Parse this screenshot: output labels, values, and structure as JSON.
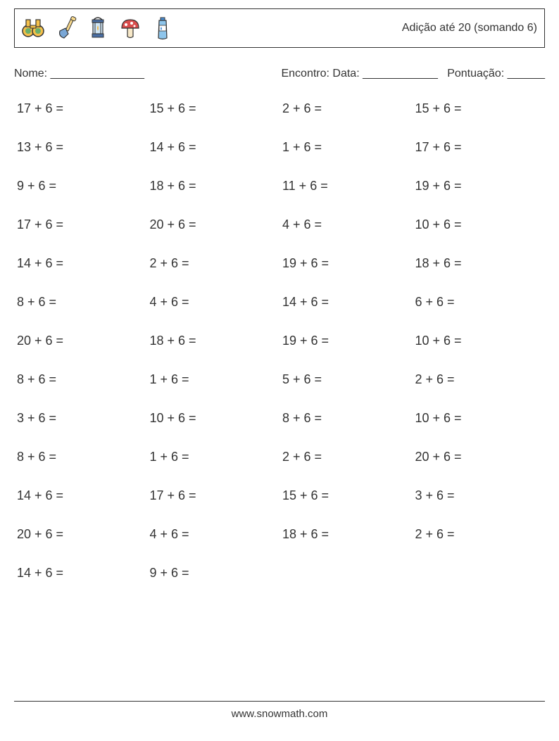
{
  "header": {
    "title": "Adição até 20 (somando 6)",
    "icons": [
      "binoculars-icon",
      "shovel-icon",
      "lantern-icon",
      "mushroom-icon",
      "water-bottle-icon"
    ]
  },
  "info": {
    "name_label": "Nome: _______________",
    "right_label": "Encontro: Data: ____________   Pontuação: ______"
  },
  "problems": {
    "columns": 4,
    "rows": [
      [
        "17 + 6 =",
        "15 + 6 =",
        "2 + 6 =",
        "15 + 6 ="
      ],
      [
        "13 + 6 =",
        "14 + 6 =",
        "1 + 6 =",
        "17 + 6 ="
      ],
      [
        "9 + 6 =",
        "18 + 6 =",
        "11 + 6 =",
        "19 + 6 ="
      ],
      [
        "17 + 6 =",
        "20 + 6 =",
        "4 + 6 =",
        "10 + 6 ="
      ],
      [
        "14 + 6 =",
        "2 + 6 =",
        "19 + 6 =",
        "18 + 6 ="
      ],
      [
        "8 + 6 =",
        "4 + 6 =",
        "14 + 6 =",
        "6 + 6 ="
      ],
      [
        "20 + 6 =",
        "18 + 6 =",
        "19 + 6 =",
        "10 + 6 ="
      ],
      [
        "8 + 6 =",
        "1 + 6 =",
        "5 + 6 =",
        "2 + 6 ="
      ],
      [
        "3 + 6 =",
        "10 + 6 =",
        "8 + 6 =",
        "10 + 6 ="
      ],
      [
        "8 + 6 =",
        "1 + 6 =",
        "2 + 6 =",
        "20 + 6 ="
      ],
      [
        "14 + 6 =",
        "17 + 6 =",
        "15 + 6 =",
        "3 + 6 ="
      ],
      [
        "20 + 6 =",
        "4 + 6 =",
        "18 + 6 =",
        "2 + 6 ="
      ],
      [
        "14 + 6 =",
        "9 + 6 =",
        "",
        ""
      ]
    ],
    "font_size": 18,
    "text_color": "#333333"
  },
  "footer": {
    "text": "www.snowmath.com"
  },
  "colors": {
    "background": "#ffffff",
    "border": "#333333",
    "text": "#333333"
  }
}
